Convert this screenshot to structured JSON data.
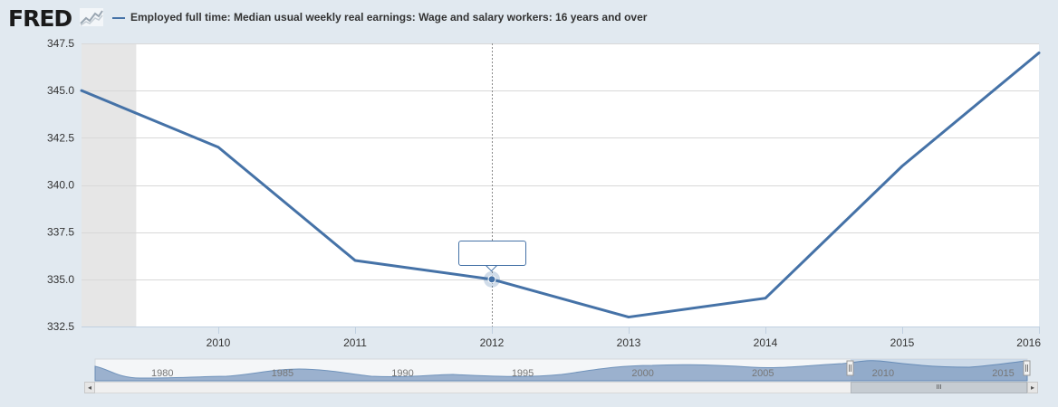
{
  "header": {
    "logo_text": "FRED",
    "logo_icon": "sparkline-chart-icon",
    "legend_label": "Employed full time: Median usual weekly real earnings: Wage and salary workers: 16 years and over"
  },
  "colors": {
    "series": "#4572a7",
    "plot_background": "#ffffff",
    "page_background": "#e1e9f0",
    "shaded_region": "#e6e6e6",
    "gridline": "#d8d8d8"
  },
  "chart_data": {
    "type": "line",
    "title": "",
    "xlabel": "",
    "ylabel": "",
    "x": [
      2009,
      2010,
      2011,
      2012,
      2013,
      2014,
      2015,
      2016
    ],
    "series": [
      {
        "name": "Employed full time: Median usual weekly real earnings: Wage and salary workers: 16 years and over",
        "values": [
          345.0,
          342.0,
          336.0,
          335.0,
          333.0,
          334.0,
          341.0,
          347.0
        ]
      }
    ],
    "x_ticks": [
      "2010",
      "2011",
      "2012",
      "2013",
      "2014",
      "2015",
      "2016"
    ],
    "y_ticks": [
      "332.5",
      "335.0",
      "337.5",
      "340.0",
      "342.5",
      "345.0",
      "347.5"
    ],
    "xlim": [
      2009,
      2016
    ],
    "ylim": [
      332.5,
      347.5
    ],
    "grid": "horizontal",
    "shaded_period": [
      2009,
      2009.4
    ],
    "crosshair_x": 2012,
    "tooltip_text": ""
  },
  "navigator": {
    "labels": [
      "1980",
      "1985",
      "1990",
      "1995",
      "2000",
      "2005",
      "2010",
      "2015"
    ],
    "left_arrow": "◂",
    "right_arrow": "▸",
    "thumb_grip": "III"
  }
}
